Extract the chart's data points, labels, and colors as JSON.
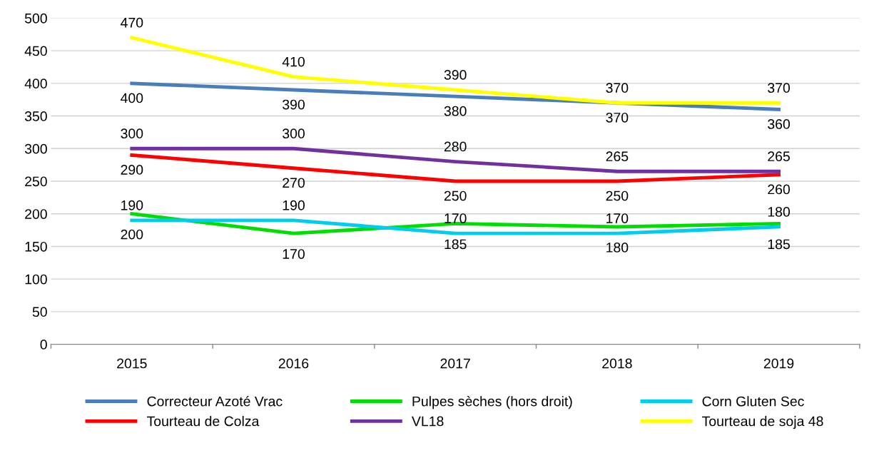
{
  "chart_data": {
    "type": "line",
    "categories": [
      "2015",
      "2016",
      "2017",
      "2018",
      "2019"
    ],
    "series": [
      {
        "name": "Correcteur Azoté Vrac",
        "color": "#4a7ebb",
        "values": [
          400,
          390,
          380,
          370,
          360
        ]
      },
      {
        "name": "Tourteau de Colza",
        "color": "#ff0000",
        "values": [
          290,
          270,
          250,
          250,
          260
        ]
      },
      {
        "name": "Pulpes sèches (hors droit)",
        "color": "#00dd00",
        "values": [
          200,
          170,
          185,
          180,
          185
        ]
      },
      {
        "name": "VL18",
        "color": "#7030a0",
        "values": [
          300,
          300,
          280,
          265,
          265
        ]
      },
      {
        "name": "Corn Gluten Sec",
        "color": "#00ccee",
        "values": [
          190,
          190,
          170,
          170,
          180
        ]
      },
      {
        "name": "Tourteau de soja 48",
        "color": "#ffff00",
        "values": [
          470,
          410,
          390,
          370,
          370
        ]
      }
    ],
    "ylim": [
      0,
      500
    ],
    "yticks": [
      0,
      50,
      100,
      150,
      200,
      250,
      300,
      350,
      400,
      450,
      500
    ],
    "grid": "y",
    "legend": "bottom",
    "marker": "none",
    "line_style": "solid",
    "data_labels": true
  }
}
